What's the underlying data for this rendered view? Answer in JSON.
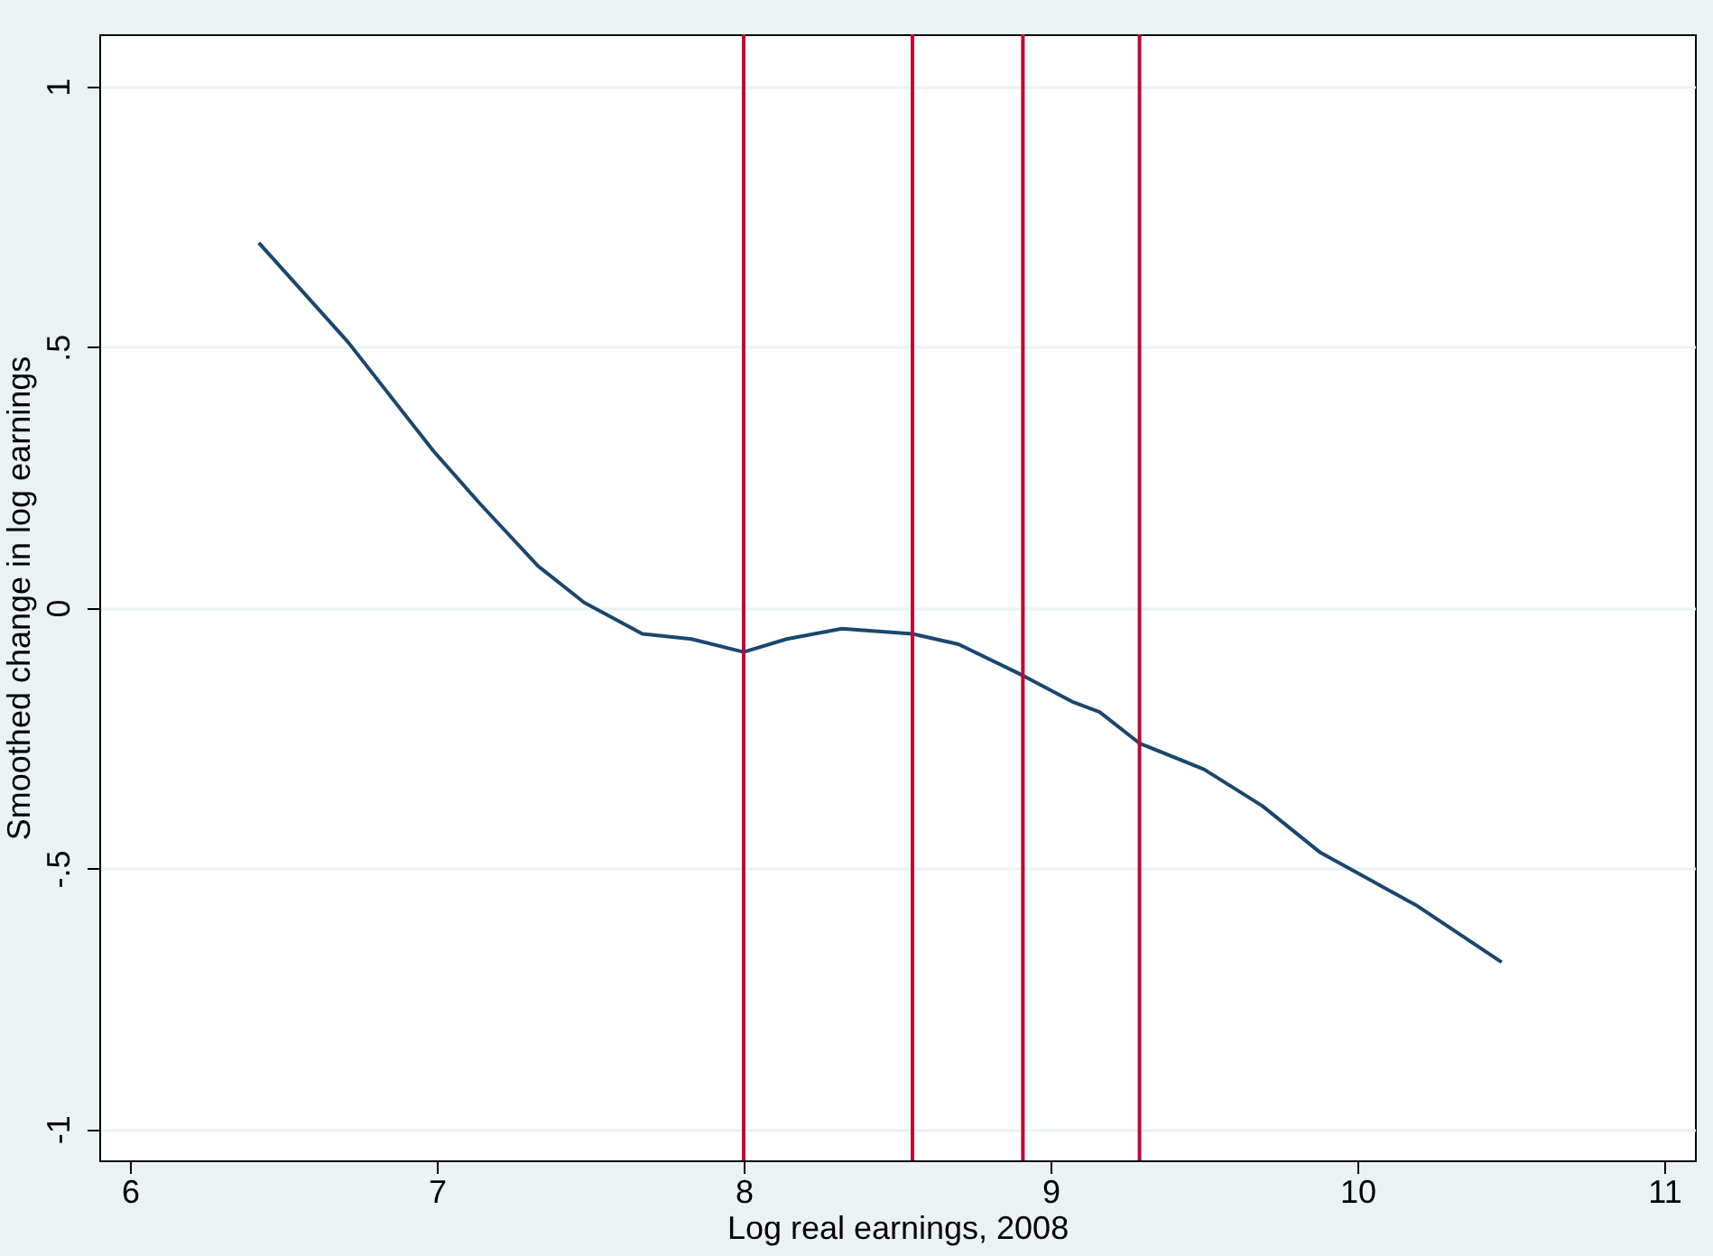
{
  "chart_data": {
    "type": "line",
    "xlabel": "Log real earnings, 2008",
    "ylabel": "Smoothed change in log earnings",
    "x": [
      6.42,
      6.71,
      6.99,
      7.14,
      7.33,
      7.48,
      7.67,
      7.83,
      8.0,
      8.14,
      8.32,
      8.55,
      8.7,
      8.91,
      9.07,
      9.16,
      9.29,
      9.5,
      9.69,
      9.88,
      10.19,
      10.47
    ],
    "series": [
      {
        "color": "#1a476f",
        "values": [
          0.7,
          0.51,
          0.3,
          0.2,
          0.08,
          0.01,
          -0.05,
          -0.06,
          -0.085,
          -0.06,
          -0.04,
          -0.05,
          -0.07,
          -0.13,
          -0.18,
          -0.2,
          -0.26,
          -0.31,
          -0.38,
          -0.47,
          -0.57,
          -0.68
        ]
      }
    ],
    "xlim": [
      5.9,
      11.1
    ],
    "xticks": [
      6,
      7,
      8,
      9,
      10,
      11
    ],
    "ylim": [
      -1.06,
      1.1
    ],
    "yticks": [
      {
        "value": -1,
        "label": "-1"
      },
      {
        "value": -0.5,
        "label": "-.5"
      },
      0,
      {
        "value": 0.5,
        "label": ".5"
      },
      1
    ],
    "ref_lines": [
      {
        "axis": "x",
        "value": 8.0,
        "color": "#c10534"
      },
      {
        "axis": "x",
        "value": 8.55,
        "color": "#c10534"
      },
      {
        "axis": "x",
        "value": 8.91,
        "color": "#c10534"
      },
      {
        "axis": "x",
        "value": 9.29,
        "color": "#c10534"
      }
    ],
    "grid": "y",
    "marker": "none",
    "line_style": "solid"
  }
}
